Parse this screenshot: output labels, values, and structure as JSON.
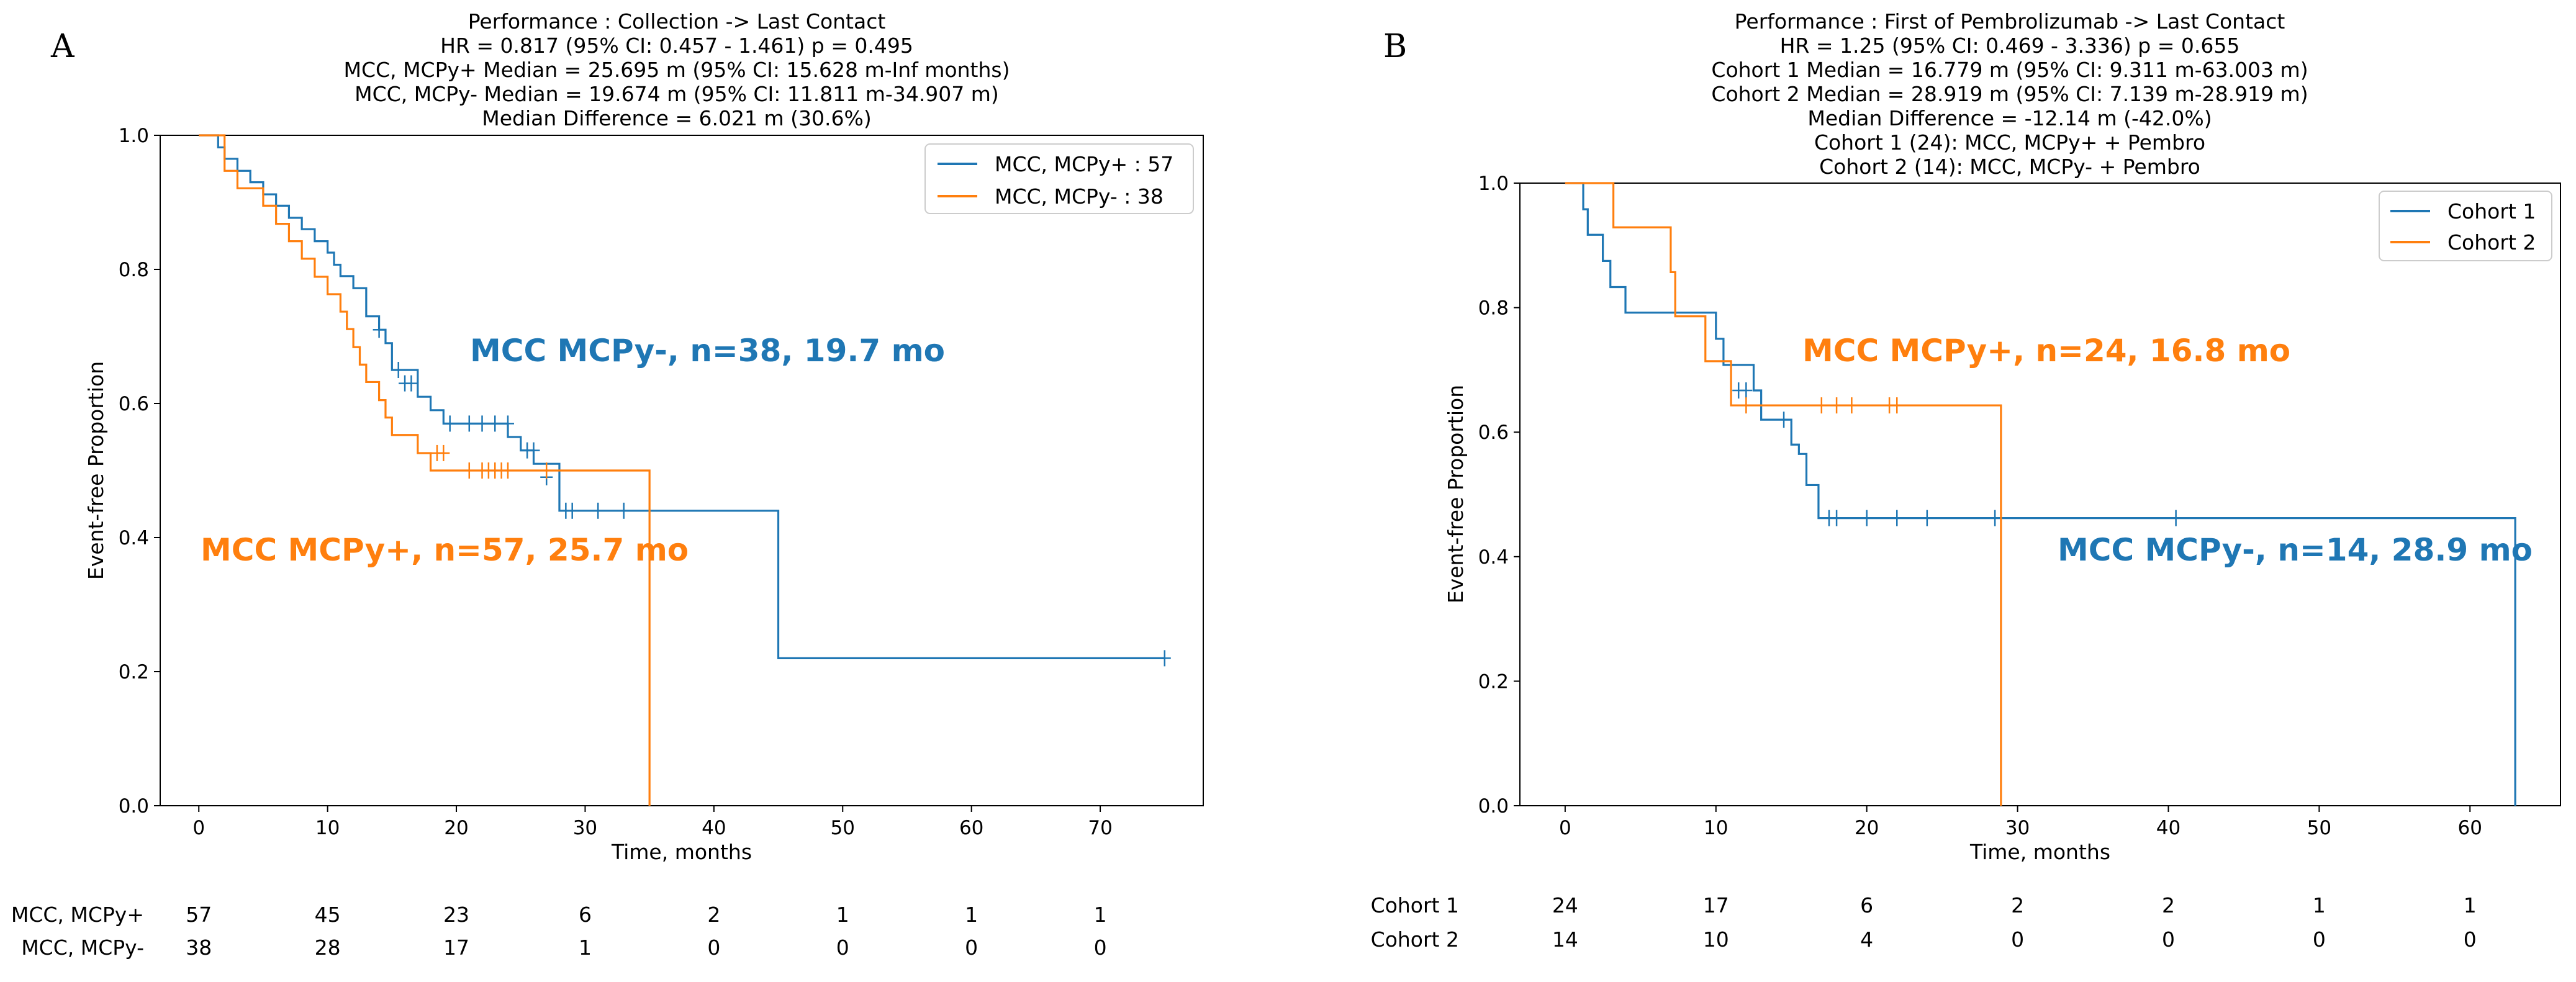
{
  "chart_data": [
    {
      "type": "line",
      "panel_label": "A",
      "title_lines": [
        "Performance : Collection -> Last Contact",
        "HR = 0.817 (95% CI: 0.457 - 1.461) p = 0.495",
        "MCC, MCPy+ Median = 25.695 m (95% CI: 15.628 m-Inf months)",
        "MCC, MCPy- Median = 19.674 m (95% CI: 11.811 m-34.907 m)",
        "Median Difference = 6.021 m (30.6%)"
      ],
      "xlabel": "Time, months",
      "ylabel": "Event-free Proportion",
      "xlim": [
        -3,
        78
      ],
      "ylim": [
        0,
        1.0
      ],
      "xticks": [
        "0",
        "10",
        "20",
        "30",
        "40",
        "50",
        "60",
        "70"
      ],
      "yticks": [
        "0.0",
        "0.2",
        "0.4",
        "0.6",
        "0.8",
        "1.0"
      ],
      "legend": [
        "MCC, MCPy+ : 57",
        "MCC, MCPy- : 38"
      ],
      "legend_position": "top-right",
      "series": [
        {
          "name": "MCC, MCPy+ : 57",
          "color": "#1f77b4",
          "steps": [
            [
              0,
              1.0
            ],
            [
              1.5,
              0.982
            ],
            [
              2,
              0.965
            ],
            [
              3,
              0.947
            ],
            [
              4,
              0.93
            ],
            [
              5,
              0.912
            ],
            [
              6,
              0.895
            ],
            [
              7,
              0.877
            ],
            [
              8,
              0.86
            ],
            [
              9,
              0.842
            ],
            [
              10,
              0.825
            ],
            [
              10.5,
              0.807
            ],
            [
              11,
              0.79
            ],
            [
              12,
              0.772
            ],
            [
              13,
              0.73
            ],
            [
              14,
              0.71
            ],
            [
              14.5,
              0.69
            ],
            [
              15,
              0.65
            ],
            [
              17,
              0.61
            ],
            [
              18,
              0.59
            ],
            [
              19,
              0.57
            ],
            [
              24,
              0.55
            ],
            [
              25,
              0.53
            ],
            [
              26,
              0.51
            ],
            [
              28,
              0.44
            ],
            [
              45,
              0.22
            ]
          ],
          "end_x": 75,
          "censors": [
            [
              14,
              0.71
            ],
            [
              15.5,
              0.65
            ],
            [
              16,
              0.63
            ],
            [
              16.5,
              0.63
            ],
            [
              19.5,
              0.57
            ],
            [
              21,
              0.57
            ],
            [
              22,
              0.57
            ],
            [
              23,
              0.57
            ],
            [
              24,
              0.57
            ],
            [
              25.5,
              0.53
            ],
            [
              26,
              0.53
            ],
            [
              27,
              0.49
            ],
            [
              28.5,
              0.44
            ],
            [
              29,
              0.44
            ],
            [
              31,
              0.44
            ],
            [
              33,
              0.44
            ],
            [
              35,
              0.44
            ],
            [
              75,
              0.22
            ]
          ]
        },
        {
          "name": "MCC, MCPy- : 38",
          "color": "#ff7f0e",
          "steps": [
            [
              0,
              1.0
            ],
            [
              2,
              0.947
            ],
            [
              3,
              0.921
            ],
            [
              5,
              0.895
            ],
            [
              6,
              0.868
            ],
            [
              7,
              0.842
            ],
            [
              8,
              0.816
            ],
            [
              9,
              0.789
            ],
            [
              10,
              0.763
            ],
            [
              11,
              0.737
            ],
            [
              11.5,
              0.711
            ],
            [
              12,
              0.684
            ],
            [
              12.5,
              0.658
            ],
            [
              13,
              0.632
            ],
            [
              14,
              0.605
            ],
            [
              14.5,
              0.579
            ],
            [
              15,
              0.553
            ],
            [
              17,
              0.526
            ],
            [
              18,
              0.5
            ],
            [
              35,
              0.0
            ]
          ],
          "end_x": 35,
          "censors": [
            [
              18.5,
              0.526
            ],
            [
              19,
              0.526
            ],
            [
              21,
              0.5
            ],
            [
              22,
              0.5
            ],
            [
              22.5,
              0.5
            ],
            [
              23,
              0.5
            ],
            [
              23.5,
              0.5
            ],
            [
              24,
              0.5
            ],
            [
              27,
              0.5
            ]
          ]
        }
      ],
      "annotations": [
        {
          "text": "MCC MCPy-, n=38, 19.7 mo",
          "color": "#1f77b4"
        },
        {
          "text": "MCC MCPy+, n=57, 25.7 mo",
          "color": "#ff7f0e"
        }
      ],
      "risk_table": {
        "times": [
          0,
          10,
          20,
          30,
          40,
          50,
          60,
          70
        ],
        "rows": [
          {
            "label": "MCC, MCPy+",
            "values": [
              "57",
              "45",
              "23",
              "6",
              "2",
              "1",
              "1",
              "1"
            ]
          },
          {
            "label": "MCC, MCPy-",
            "values": [
              "38",
              "28",
              "17",
              "1",
              "0",
              "0",
              "0",
              "0"
            ]
          }
        ]
      }
    },
    {
      "type": "line",
      "panel_label": "B",
      "title_lines": [
        "Performance : First of Pembrolizumab -> Last Contact",
        "HR = 1.25 (95% CI: 0.469 - 3.336) p = 0.655",
        "Cohort 1 Median = 16.779 m (95% CI: 9.311 m-63.003 m)",
        "Cohort 2 Median = 28.919 m (95% CI: 7.139 m-28.919 m)",
        "Median Difference = -12.14 m (-42.0%)",
        "Cohort 1 (24): MCC, MCPy+ + Pembro",
        "Cohort 2 (14): MCC, MCPy- + Pembro"
      ],
      "xlabel": "Time, months",
      "ylabel": "Event-free Proportion",
      "xlim": [
        -3,
        66
      ],
      "ylim": [
        0,
        1.0
      ],
      "xticks": [
        "0",
        "10",
        "20",
        "30",
        "40",
        "50",
        "60"
      ],
      "yticks": [
        "0.0",
        "0.2",
        "0.4",
        "0.6",
        "0.8",
        "1.0"
      ],
      "legend": [
        "Cohort 1",
        "Cohort 2"
      ],
      "legend_position": "top-right",
      "series": [
        {
          "name": "Cohort 1",
          "color": "#1f77b4",
          "steps": [
            [
              0,
              1.0
            ],
            [
              1.2,
              0.958
            ],
            [
              1.5,
              0.917
            ],
            [
              2.5,
              0.875
            ],
            [
              3,
              0.833
            ],
            [
              4,
              0.792
            ],
            [
              10,
              0.75
            ],
            [
              10.5,
              0.708
            ],
            [
              12.5,
              0.667
            ],
            [
              13,
              0.62
            ],
            [
              15,
              0.58
            ],
            [
              15.5,
              0.565
            ],
            [
              16,
              0.515
            ],
            [
              16.8,
              0.462
            ],
            [
              63,
              0.0
            ]
          ],
          "end_x": 63,
          "censors": [
            [
              11.5,
              0.667
            ],
            [
              12,
              0.667
            ],
            [
              14.5,
              0.62
            ],
            [
              17.5,
              0.462
            ],
            [
              18,
              0.462
            ],
            [
              20,
              0.462
            ],
            [
              22,
              0.462
            ],
            [
              24,
              0.462
            ],
            [
              28.5,
              0.462
            ],
            [
              40.5,
              0.462
            ]
          ]
        },
        {
          "name": "Cohort 2",
          "color": "#ff7f0e",
          "steps": [
            [
              0,
              1.0
            ],
            [
              3.2,
              0.929
            ],
            [
              7,
              0.857
            ],
            [
              7.3,
              0.786
            ],
            [
              9.3,
              0.714
            ],
            [
              11,
              0.643
            ],
            [
              28.9,
              0.0
            ]
          ],
          "end_x": 28.9,
          "censors": [
            [
              12,
              0.643
            ],
            [
              17,
              0.643
            ],
            [
              18,
              0.643
            ],
            [
              19,
              0.643
            ],
            [
              21.5,
              0.643
            ],
            [
              22,
              0.643
            ]
          ]
        }
      ],
      "annotations": [
        {
          "text": "MCC MCPy+, n=24, 16.8 mo",
          "color": "#ff7f0e"
        },
        {
          "text": "MCC MCPy-, n=14, 28.9 mo",
          "color": "#1f77b4"
        }
      ],
      "risk_table": {
        "times": [
          0,
          10,
          20,
          30,
          40,
          50,
          60
        ],
        "rows": [
          {
            "label": "Cohort 1",
            "values": [
              "24",
              "17",
              "6",
              "2",
              "2",
              "1",
              "1"
            ]
          },
          {
            "label": "Cohort 2",
            "values": [
              "14",
              "10",
              "4",
              "0",
              "0",
              "0",
              "0"
            ]
          }
        ]
      }
    }
  ]
}
